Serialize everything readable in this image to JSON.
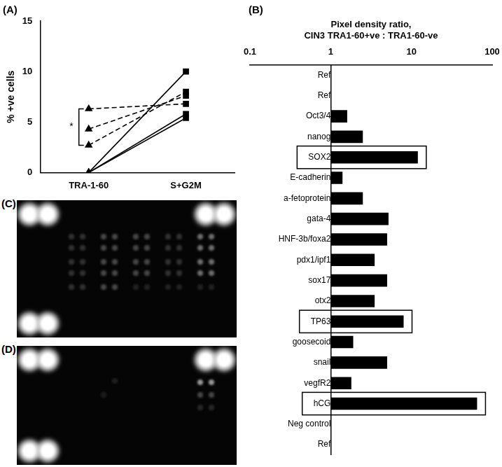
{
  "chart_data": [
    {
      "type": "line",
      "title": "(A)",
      "y_label": "% +ve cells",
      "categories": [
        "TRA-1-60",
        "S+G2M"
      ],
      "series": [
        {
          "values": [
            6.3,
            6.8
          ],
          "line_style": "dashed",
          "color": "#000000"
        },
        {
          "values": [
            4.3,
            7.6
          ],
          "line_style": "dashed",
          "color": "#000000"
        },
        {
          "values": [
            2.7,
            8.0
          ],
          "line_style": "dashed",
          "color": "#000000"
        },
        {
          "values": [
            0,
            10
          ],
          "line_style": "solid",
          "color": "#000000"
        },
        {
          "values": [
            0,
            5.8
          ],
          "line_style": "solid",
          "color": "#000000"
        },
        {
          "values": [
            0,
            5.4
          ],
          "line_style": "solid",
          "color": "#000000"
        }
      ],
      "ylim": [
        0,
        15
      ],
      "yticks": [
        0,
        5,
        10,
        15
      ],
      "grid": false,
      "annotations": [
        {
          "text": "*"
        }
      ]
    },
    {
      "type": "bar",
      "orientation": "horizontal",
      "title": "(B)",
      "x_label": [
        "Pixel density ratio,",
        "CIN3 TRA1-60+ve : TRA1-60-ve"
      ],
      "categories": [
        "Ref",
        "Ref",
        "Oct3/4",
        "nanog",
        "SOX2",
        "E-cadherin",
        "a-fetoprotein",
        "gata-4",
        "HNF-3b/foxa2",
        "pdx1/ipf1",
        "sox17",
        "otx2",
        "TP63",
        "goosecoid",
        "snail",
        "vegfR2",
        "hCG",
        "Neg control",
        "Ref"
      ],
      "values": [
        1,
        1,
        1.6,
        2.5,
        12,
        1.4,
        2.5,
        5.2,
        5.0,
        3.5,
        5.0,
        3.5,
        8,
        1.9,
        5.0,
        1.8,
        65,
        1,
        1
      ],
      "baseline": 1,
      "color": "#000000",
      "log": "x",
      "xlim": [
        0.1,
        100
      ],
      "xticks": [
        0.1,
        1,
        10,
        100
      ],
      "grid": false,
      "highlighted": [
        "SOX2",
        "TP63",
        "hCG"
      ]
    }
  ],
  "images": [
    {
      "label": "(C)"
    },
    {
      "label": "(D)"
    }
  ]
}
